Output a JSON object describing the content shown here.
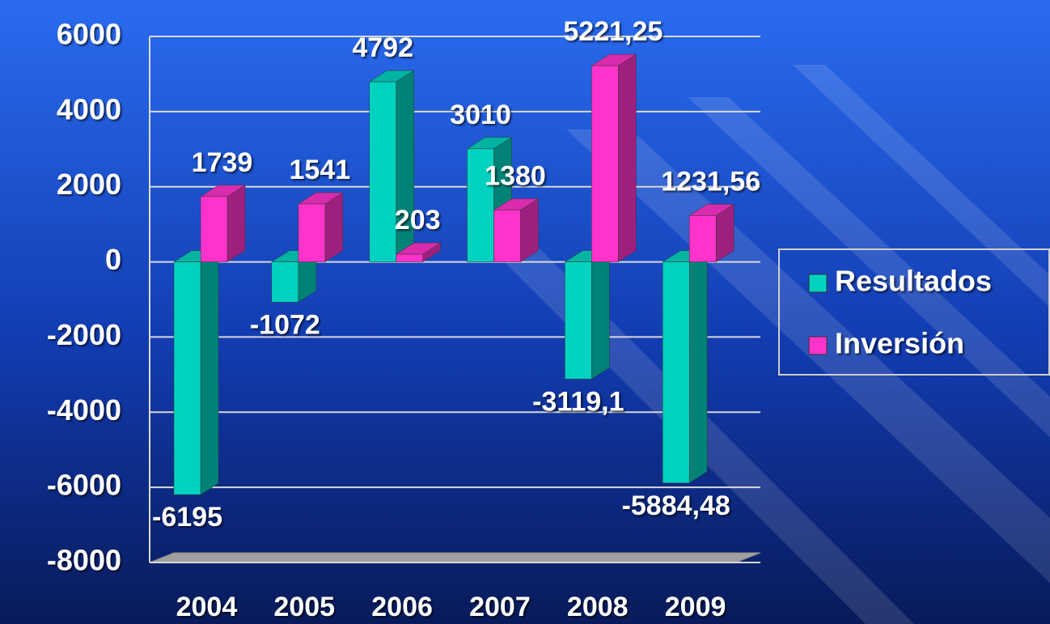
{
  "chart_data": {
    "type": "bar3d",
    "categories": [
      "2004",
      "2005",
      "2006",
      "2007",
      "2008",
      "2009"
    ],
    "series": [
      {
        "name": "Resultados",
        "color": "#00d2c0",
        "values": [
          -6195,
          -1072,
          4792,
          3010,
          -3119.1,
          -5884.48
        ],
        "value_labels": [
          "-6195",
          "-1072",
          "4792",
          "3010",
          "-3119,1",
          "-5884,48"
        ]
      },
      {
        "name": "Inversión",
        "color": "#ff33cc",
        "values": [
          1739,
          1541,
          203,
          1380,
          5221.25,
          1231.56
        ],
        "value_labels": [
          "1739",
          "1541",
          "203",
          "1380",
          "5221,25",
          "1231,56"
        ]
      }
    ],
    "ylim": [
      -8000,
      6000
    ],
    "yticks": [
      -8000,
      -6000,
      -4000,
      -2000,
      0,
      2000,
      4000,
      6000
    ],
    "grid": true,
    "legend": "right"
  }
}
